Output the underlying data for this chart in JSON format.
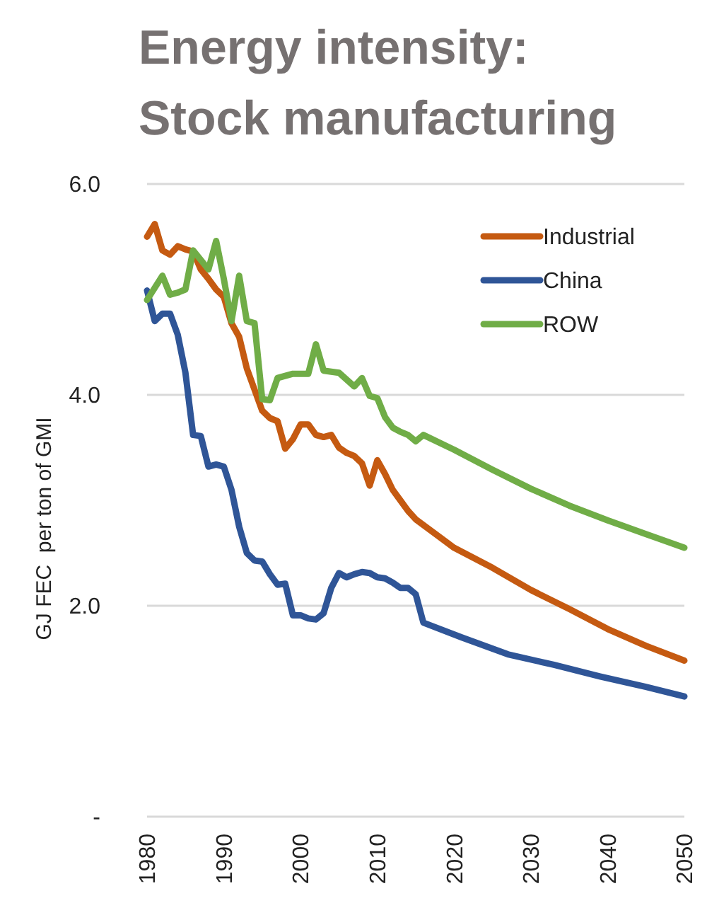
{
  "chart_data": {
    "type": "line",
    "title": "Energy intensity: Stock manufacturing",
    "ylabel": "GJ FEC  per ton of GMI",
    "xlim": [
      1980,
      2050
    ],
    "xticks": [
      1980,
      1990,
      2000,
      2010,
      2020,
      2030,
      2040,
      2050
    ],
    "ylim": [
      0,
      6.0
    ],
    "yticks": [
      {
        "value": 0,
        "label": "-"
      },
      {
        "value": 2,
        "label": "2.0"
      },
      {
        "value": 4,
        "label": "4.0"
      },
      {
        "value": 6,
        "label": "6.0"
      }
    ],
    "grid": "y",
    "legend": "top right",
    "line_style": "solid",
    "series": [
      {
        "name": "Industrial",
        "color": "#c55a11",
        "x": [
          1980,
          1981,
          1982,
          1983,
          1984,
          1985,
          1986,
          1987,
          1988,
          1989,
          1990,
          1991,
          1992,
          1993,
          1994,
          1995,
          1996,
          1997,
          1998,
          1999,
          2000,
          2001,
          2002,
          2003,
          2004,
          2005,
          2006,
          2007,
          2008,
          2009,
          2010,
          2011,
          2012,
          2013,
          2014,
          2015,
          2020,
          2025,
          2030,
          2035,
          2040,
          2045,
          2050
        ],
        "values": [
          5.5,
          5.62,
          5.37,
          5.33,
          5.41,
          5.38,
          5.36,
          5.19,
          5.1,
          5.0,
          4.93,
          4.68,
          4.55,
          4.25,
          4.05,
          3.85,
          3.78,
          3.75,
          3.49,
          3.58,
          3.72,
          3.72,
          3.62,
          3.6,
          3.62,
          3.5,
          3.45,
          3.42,
          3.35,
          3.14,
          3.38,
          3.25,
          3.1,
          3.0,
          2.9,
          2.82,
          2.55,
          2.36,
          2.15,
          1.97,
          1.78,
          1.62,
          1.48
        ]
      },
      {
        "name": "China",
        "color": "#2f5597",
        "x": [
          1980,
          1981,
          1982,
          1983,
          1984,
          1985,
          1986,
          1987,
          1988,
          1989,
          1990,
          1991,
          1992,
          1993,
          1994,
          1995,
          1996,
          1997,
          1998,
          1999,
          2000,
          2001,
          2002,
          2003,
          2004,
          2005,
          2006,
          2007,
          2008,
          2009,
          2010,
          2011,
          2012,
          2013,
          2014,
          2015,
          2016,
          2021,
          2027,
          2033,
          2039,
          2045,
          2050
        ],
        "values": [
          4.99,
          4.7,
          4.77,
          4.77,
          4.57,
          4.21,
          3.62,
          3.61,
          3.32,
          3.34,
          3.32,
          3.1,
          2.75,
          2.5,
          2.43,
          2.42,
          2.3,
          2.2,
          2.21,
          1.91,
          1.91,
          1.88,
          1.87,
          1.93,
          2.17,
          2.31,
          2.27,
          2.3,
          2.32,
          2.31,
          2.27,
          2.26,
          2.22,
          2.17,
          2.17,
          2.11,
          1.84,
          1.7,
          1.54,
          1.44,
          1.33,
          1.23,
          1.14
        ]
      },
      {
        "name": "ROW",
        "color": "#70ad47",
        "x": [
          1980,
          1982,
          1983,
          1984,
          1985,
          1986,
          1987,
          1988,
          1989,
          1990,
          1991,
          1992,
          1993,
          1994,
          1995,
          1996,
          1997,
          1999,
          2001,
          2002,
          2003,
          2005,
          2007,
          2008,
          2009,
          2010,
          2011,
          2012,
          2013,
          2014,
          2015,
          2016,
          2020,
          2025,
          2030,
          2035,
          2040,
          2045,
          2050
        ],
        "values": [
          4.9,
          5.13,
          4.95,
          4.97,
          5.0,
          5.37,
          5.28,
          5.19,
          5.46,
          5.1,
          4.7,
          5.13,
          4.7,
          4.68,
          3.96,
          3.95,
          4.16,
          4.2,
          4.2,
          4.48,
          4.23,
          4.21,
          4.08,
          4.16,
          3.99,
          3.97,
          3.79,
          3.69,
          3.65,
          3.62,
          3.56,
          3.62,
          3.48,
          3.29,
          3.11,
          2.95,
          2.81,
          2.68,
          2.55
        ]
      }
    ]
  }
}
